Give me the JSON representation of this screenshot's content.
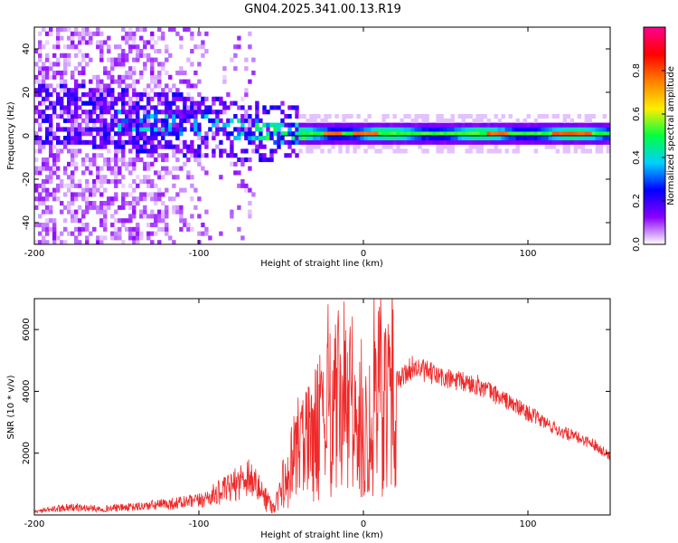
{
  "title": "GN04.2025.341.00.13.R19",
  "colors": {
    "snr_line": "#ee2a2a",
    "background": "#ffffff",
    "axis": "#000000"
  },
  "chart_data": [
    {
      "type": "heatmap",
      "name": "spectrogram",
      "xlabel": "Height of straight line (km)",
      "ylabel": "Frequency (Hz)",
      "xlim": [
        -200,
        150
      ],
      "ylim": [
        -50,
        50
      ],
      "xticks": [
        -200,
        -100,
        0,
        100
      ],
      "yticks": [
        -40,
        -20,
        0,
        20,
        40
      ],
      "colorbar": {
        "label": "Normalized spectral amplitude",
        "range": [
          0.0,
          1.0
        ],
        "ticks": [
          0.0,
          0.2,
          0.4,
          0.6,
          0.8
        ],
        "tick_labels": [
          "0.0",
          "0.2",
          "0.4",
          "0.6",
          "0.8"
        ],
        "colormap": [
          "#ffffff",
          "#8a00ff",
          "#0000ff",
          "#00d0ff",
          "#00ff40",
          "#ffee00",
          "#ff8000",
          "#ff0000",
          "#ff0090"
        ]
      },
      "features": {
        "carrier_band_hz": 0,
        "drift_start_hz": 10,
        "drift_end_km": -50,
        "noise_end_km": -60
      }
    },
    {
      "type": "line",
      "name": "snr",
      "xlabel": "Height of straight line (km)",
      "ylabel": "SNR (10 * v/v)",
      "xlim": [
        -200,
        150
      ],
      "ylim": [
        0,
        7000
      ],
      "xticks": [
        -200,
        -100,
        0,
        100
      ],
      "yticks": [
        2000,
        4000,
        6000
      ],
      "series": [
        {
          "name": "SNR",
          "x": [
            -200,
            -180,
            -160,
            -140,
            -120,
            -100,
            -80,
            -70,
            -60,
            -55,
            -50,
            -40,
            -30,
            -20,
            -15,
            -10,
            0,
            10,
            20,
            30,
            40,
            50,
            60,
            70,
            80,
            90,
            100,
            110,
            120,
            130,
            140,
            150
          ],
          "y": [
            100,
            250,
            200,
            250,
            350,
            450,
            900,
            1300,
            600,
            250,
            700,
            1800,
            2600,
            3200,
            3600,
            3300,
            2500,
            3700,
            4300,
            4800,
            4600,
            4400,
            4300,
            4200,
            3900,
            3600,
            3300,
            3000,
            2700,
            2500,
            2300,
            1900
          ]
        }
      ]
    }
  ]
}
